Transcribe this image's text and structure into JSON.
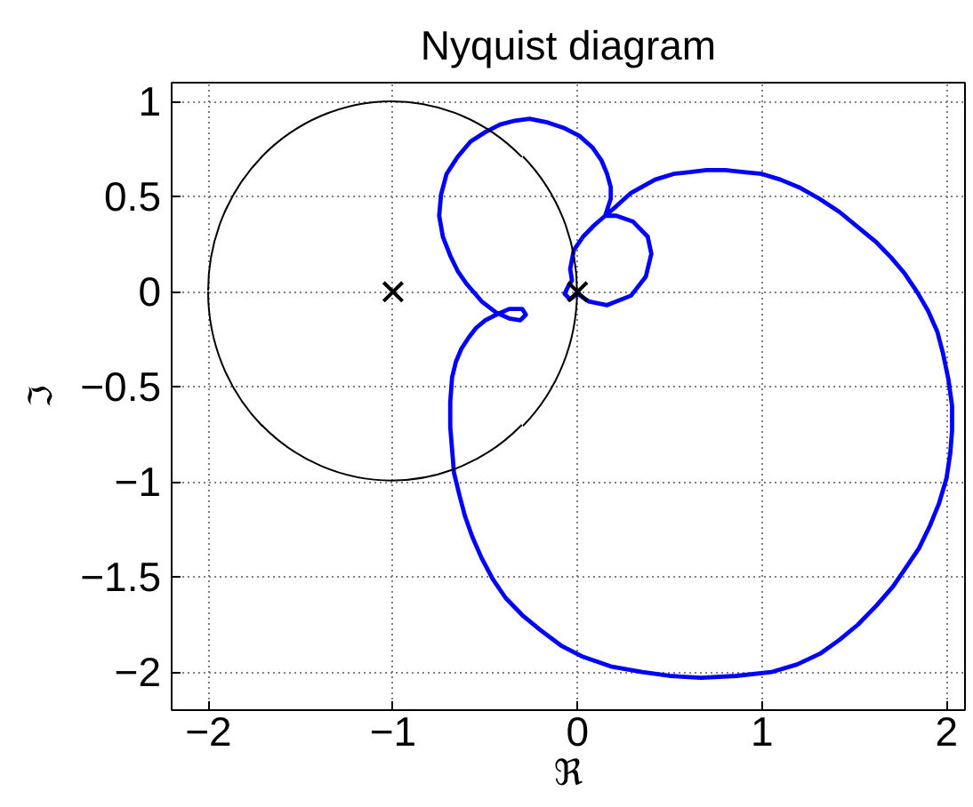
{
  "chart_data": {
    "type": "line",
    "title": "Nyquist diagram",
    "xlabel": "ℜ",
    "ylabel": "ℑ",
    "xlim": [
      -2.2,
      2.1
    ],
    "ylim": [
      -2.2,
      1.1
    ],
    "xticks": [
      {
        "value": -2,
        "label": "−2"
      },
      {
        "value": -1,
        "label": "−1"
      },
      0,
      1,
      2
    ],
    "yticks": [
      {
        "value": -2,
        "label": "−2"
      },
      {
        "value": -1.5,
        "label": "−1.5"
      },
      {
        "value": -1,
        "label": "−1"
      },
      {
        "value": -0.5,
        "label": "−0.5"
      },
      0,
      0.5,
      1
    ],
    "grid": true,
    "series": [
      {
        "color": "#0000ff",
        "x": [
          0.15,
          0.21,
          0.29,
          0.42,
          0.52,
          0.61,
          0.7,
          0.8,
          0.9,
          1.0,
          1.1,
          1.2,
          1.31,
          1.42,
          1.52,
          1.62,
          1.7,
          1.77,
          1.84,
          1.9,
          1.95,
          1.98,
          2.01,
          2.03,
          2.03,
          2.02,
          2.0,
          1.96,
          1.91,
          1.85,
          1.78,
          1.71,
          1.62,
          1.52,
          1.42,
          1.32,
          1.19,
          1.05,
          0.86,
          0.67,
          0.5,
          0.35,
          0.18,
          0.03,
          -0.09,
          -0.2,
          -0.3,
          -0.39,
          -0.46,
          -0.52,
          -0.57,
          -0.61,
          -0.64,
          -0.67,
          -0.68,
          -0.69,
          -0.69,
          -0.68,
          -0.66,
          -0.63,
          -0.59,
          -0.55,
          -0.5,
          -0.44,
          -0.37,
          -0.3,
          -0.28,
          -0.31,
          -0.37,
          -0.44,
          -0.52,
          -0.6,
          -0.65,
          -0.69,
          -0.73,
          -0.75,
          -0.74,
          -0.71,
          -0.65,
          -0.58,
          -0.5,
          -0.42,
          -0.34,
          -0.26,
          -0.16,
          -0.07,
          0.01,
          0.08,
          0.13,
          0.16,
          0.18,
          0.18,
          0.15,
          0.21,
          0.3,
          0.38,
          0.4,
          0.37,
          0.29,
          0.16,
          0.06,
          0.0,
          -0.04,
          -0.07,
          -0.05,
          -0.03,
          -0.04,
          -0.02,
          0.03,
          0.09,
          0.15,
          0.21,
          0.29,
          0.42,
          0.52,
          0.61
        ],
        "values": [
          0.4,
          0.45,
          0.52,
          0.59,
          0.62,
          0.63,
          0.64,
          0.64,
          0.63,
          0.62,
          0.59,
          0.55,
          0.49,
          0.42,
          0.34,
          0.26,
          0.18,
          0.1,
          0.0,
          -0.1,
          -0.21,
          -0.32,
          -0.46,
          -0.6,
          -0.73,
          -0.85,
          -0.98,
          -1.11,
          -1.23,
          -1.35,
          -1.45,
          -1.55,
          -1.65,
          -1.75,
          -1.83,
          -1.9,
          -1.96,
          -2.0,
          -2.02,
          -2.03,
          -2.02,
          -2.0,
          -1.97,
          -1.92,
          -1.86,
          -1.78,
          -1.7,
          -1.61,
          -1.51,
          -1.4,
          -1.29,
          -1.18,
          -1.07,
          -0.95,
          -0.83,
          -0.71,
          -0.58,
          -0.45,
          -0.37,
          -0.3,
          -0.24,
          -0.19,
          -0.15,
          -0.12,
          -0.09,
          -0.09,
          -0.12,
          -0.15,
          -0.14,
          -0.11,
          -0.05,
          0.04,
          0.11,
          0.19,
          0.29,
          0.4,
          0.51,
          0.62,
          0.71,
          0.79,
          0.84,
          0.88,
          0.9,
          0.91,
          0.89,
          0.86,
          0.82,
          0.76,
          0.69,
          0.62,
          0.55,
          0.49,
          0.4,
          0.4,
          0.37,
          0.29,
          0.2,
          0.08,
          -0.02,
          -0.07,
          -0.05,
          -0.01,
          -0.04,
          -0.01,
          0.03,
          0.06,
          0.12,
          0.22,
          0.29,
          0.35,
          0.4,
          0.45,
          0.52,
          0.59,
          0.62,
          0.63
        ]
      },
      {
        "type": "scatter",
        "color": "#000000",
        "marker": "cross",
        "x": [
          -1,
          0
        ],
        "values": [
          0,
          0
        ]
      }
    ]
  }
}
